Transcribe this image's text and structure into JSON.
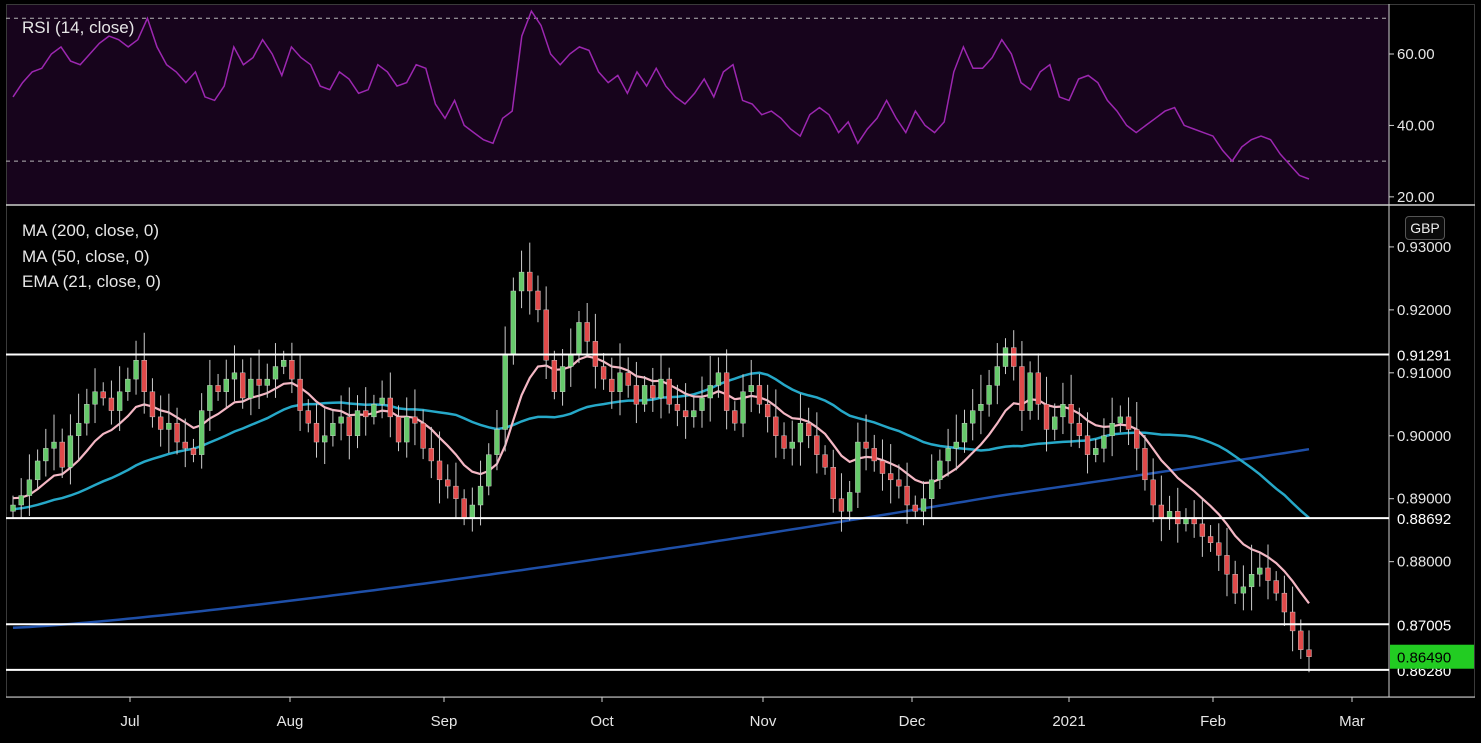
{
  "rsi_panel": {
    "label": "RSI (14, close)",
    "colors": {
      "background": "#17041c",
      "line": "#9c27b0"
    }
  },
  "price_panel": {
    "legend": [
      "MA (200, close, 0)",
      "MA (50, close, 0)",
      "EMA (21, close, 0)"
    ],
    "currency_badge": "GBP",
    "colors": {
      "up": "#66c96b",
      "down": "#e04a4a",
      "ma200": "#1e4fa8",
      "ma50": "#26a8c8",
      "ema21": "#f4b7c4",
      "last_price_bg": "#22cc22"
    }
  },
  "chart_data": [
    {
      "type": "line",
      "title": "RSI (14, close)",
      "ylim": [
        18,
        74
      ],
      "y_ticks": [
        "60.00",
        "40.00",
        "20.00"
      ],
      "y_tick_values": [
        60,
        40,
        20
      ],
      "levels": [
        70,
        30
      ],
      "x_ticks": [
        "Jul",
        "Aug",
        "Sep",
        "Oct",
        "Nov",
        "Dec",
        "2021",
        "Feb",
        "Mar"
      ],
      "series": [
        {
          "values": [
            48,
            52,
            55,
            56,
            60,
            62,
            58,
            57,
            60,
            63,
            65,
            64,
            62,
            64,
            70,
            62,
            57,
            55,
            52,
            55,
            48,
            47,
            51,
            62,
            57,
            59,
            64,
            60,
            54,
            62,
            59,
            57,
            51,
            50,
            55,
            53,
            49,
            50,
            57,
            55,
            51,
            52,
            57,
            56,
            46,
            42,
            47,
            40,
            38,
            36,
            35,
            42,
            44,
            65,
            72,
            68,
            60,
            57,
            60,
            62,
            61,
            55,
            52,
            54,
            49,
            55,
            51,
            56,
            51,
            48,
            46,
            49,
            53,
            48,
            55,
            57,
            47,
            46,
            43,
            44,
            42,
            39,
            37,
            43,
            45,
            43,
            38,
            41,
            35,
            39,
            42,
            47,
            42,
            38,
            44,
            40,
            38,
            41,
            55,
            62,
            56,
            56,
            59,
            64,
            60,
            52,
            50,
            55,
            57,
            48,
            47,
            53,
            54,
            52,
            47,
            44,
            40,
            38,
            40,
            42,
            44,
            45,
            40,
            39,
            38,
            37,
            33,
            30,
            34,
            36,
            37,
            36,
            32,
            29,
            26,
            25
          ]
        }
      ]
    },
    {
      "type": "candlestick",
      "currency": "GBP",
      "ylim": [
        0.8585,
        0.9365
      ],
      "y_ticks": [
        "0.93000",
        "0.92000",
        "0.91000",
        "0.90000",
        "0.89000",
        "0.88000"
      ],
      "y_tick_values": [
        0.93,
        0.92,
        0.91,
        0.9,
        0.89,
        0.88
      ],
      "x_ticks": [
        "Jul",
        "Aug",
        "Sep",
        "Oct",
        "Nov",
        "Dec",
        "2021",
        "Feb",
        "Mar"
      ],
      "horizontal_levels": [
        {
          "value": 0.91291,
          "label": "0.91291"
        },
        {
          "value": 0.88692,
          "label": "0.88692"
        },
        {
          "value": 0.87005,
          "label": "0.87005"
        },
        {
          "value": 0.8628,
          "label": "0.86280"
        }
      ],
      "last_price": {
        "value": 0.8649,
        "label": "0.86490"
      },
      "closes": [
        0.889,
        0.8905,
        0.893,
        0.896,
        0.898,
        0.899,
        0.895,
        0.9,
        0.902,
        0.905,
        0.907,
        0.906,
        0.904,
        0.907,
        0.909,
        0.912,
        0.907,
        0.903,
        0.901,
        0.902,
        0.899,
        0.898,
        0.897,
        0.904,
        0.908,
        0.907,
        0.909,
        0.91,
        0.906,
        0.909,
        0.908,
        0.909,
        0.911,
        0.912,
        0.909,
        0.904,
        0.902,
        0.899,
        0.9,
        0.902,
        0.903,
        0.9,
        0.904,
        0.903,
        0.905,
        0.906,
        0.903,
        0.899,
        0.903,
        0.902,
        0.898,
        0.896,
        0.893,
        0.892,
        0.89,
        0.887,
        0.889,
        0.892,
        0.897,
        0.901,
        0.913,
        0.923,
        0.926,
        0.923,
        0.92,
        0.912,
        0.907,
        0.911,
        0.913,
        0.918,
        0.915,
        0.911,
        0.909,
        0.907,
        0.91,
        0.908,
        0.905,
        0.908,
        0.906,
        0.909,
        0.905,
        0.904,
        0.903,
        0.904,
        0.906,
        0.908,
        0.91,
        0.904,
        0.902,
        0.907,
        0.908,
        0.905,
        0.903,
        0.9,
        0.898,
        0.899,
        0.902,
        0.9,
        0.897,
        0.895,
        0.89,
        0.888,
        0.891,
        0.899,
        0.898,
        0.896,
        0.894,
        0.893,
        0.892,
        0.889,
        0.888,
        0.89,
        0.893,
        0.896,
        0.898,
        0.899,
        0.902,
        0.904,
        0.905,
        0.908,
        0.911,
        0.914,
        0.911,
        0.904,
        0.91,
        0.905,
        0.901,
        0.903,
        0.905,
        0.902,
        0.9,
        0.897,
        0.898,
        0.9,
        0.902,
        0.903,
        0.901,
        0.898,
        0.893,
        0.889,
        0.887,
        0.888,
        0.886,
        0.887,
        0.886,
        0.884,
        0.883,
        0.881,
        0.878,
        0.875,
        0.876,
        0.878,
        0.879,
        0.877,
        0.875,
        0.872,
        0.869,
        0.866,
        0.8649
      ]
    }
  ]
}
